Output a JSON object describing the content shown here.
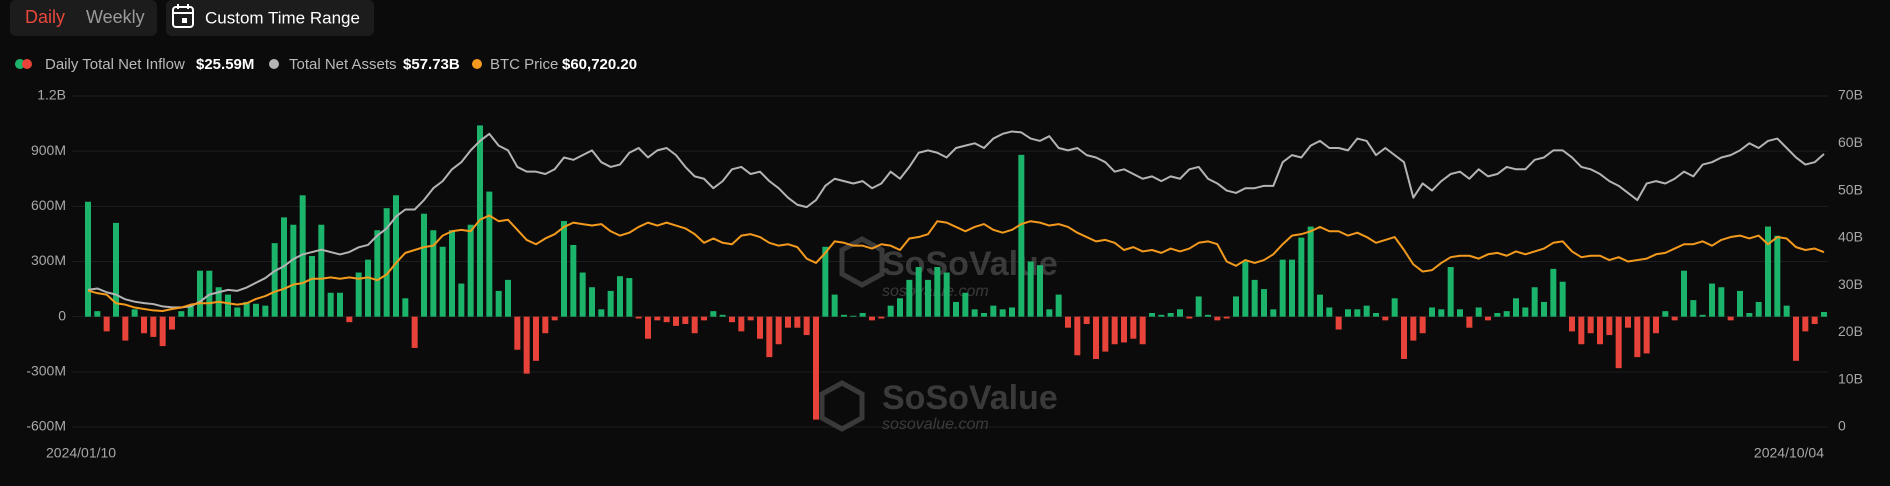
{
  "controls": {
    "tabs": [
      "Daily",
      "Weekly"
    ],
    "custom_range": "Custom Time Range"
  },
  "watermark": {
    "brand": "SoSoValue",
    "site": "sosovalue.com"
  },
  "chart_data": {
    "type": "combo",
    "categories": [
      "2024/01/10",
      null,
      null,
      null,
      null,
      null,
      null,
      null,
      null,
      null,
      null,
      null,
      null,
      null,
      null,
      null,
      null,
      null,
      null,
      null,
      null,
      null,
      null,
      null,
      null,
      null,
      null,
      null,
      null,
      null,
      null,
      null,
      null,
      null,
      null,
      null,
      null,
      null,
      null,
      null,
      null,
      null,
      null,
      null,
      null,
      null,
      null,
      null,
      null,
      null,
      null,
      null,
      null,
      null,
      null,
      null,
      null,
      null,
      null,
      null,
      null,
      null,
      null,
      null,
      null,
      null,
      null,
      null,
      null,
      null,
      null,
      null,
      null,
      null,
      null,
      null,
      null,
      null,
      null,
      null,
      null,
      null,
      null,
      null,
      null,
      null,
      null,
      null,
      null,
      null,
      null,
      null,
      null,
      null,
      null,
      null,
      null,
      null,
      null,
      null,
      null,
      null,
      null,
      null,
      null,
      null,
      null,
      null,
      null,
      null,
      null,
      null,
      null,
      null,
      null,
      null,
      null,
      null,
      null,
      null,
      null,
      null,
      null,
      null,
      null,
      null,
      null,
      null,
      null,
      null,
      null,
      null,
      null,
      null,
      null,
      null,
      null,
      null,
      null,
      null,
      null,
      null,
      null,
      null,
      null,
      null,
      null,
      null,
      null,
      null,
      null,
      null,
      null,
      null,
      null,
      null,
      null,
      null,
      null,
      null,
      null,
      null,
      null,
      null,
      null,
      null,
      null,
      null,
      null,
      null,
      null,
      null,
      null,
      null,
      null,
      null,
      null,
      null,
      null,
      null,
      null,
      null,
      null,
      null,
      null,
      null,
      "2024/10/04"
    ],
    "series": [
      {
        "name": "Daily Total Net Inflow",
        "type": "bar",
        "legend_value": "$25.59M",
        "color": "#1cb36b",
        "negative_color": "#e8433a",
        "values": [
          625000000.0,
          30000000.0,
          -80000000.0,
          510000000.0,
          -130000000.0,
          40000000.0,
          -90000000.0,
          -110000000.0,
          -160000000.0,
          -70000000.0,
          30000000.0,
          60000000.0,
          250000000.0,
          250000000.0,
          160000000.0,
          120000000.0,
          50000000.0,
          80000000.0,
          70000000.0,
          60000000.0,
          400000000.0,
          540000000.0,
          500000000.0,
          660000000.0,
          330000000.0,
          500000000.0,
          130000000.0,
          130000000.0,
          -30000000.0,
          240000000.0,
          310000000.0,
          470000000.0,
          590000000.0,
          660000000.0,
          100000000.0,
          -170000000.0,
          560000000.0,
          470000000.0,
          380000000.0,
          470000000.0,
          180000000.0,
          500000000.0,
          1040000000.0,
          680000000.0,
          140000000.0,
          200000000.0,
          -180000000.0,
          -310000000.0,
          -240000000.0,
          -90000000.0,
          -20000000.0,
          520000000.0,
          390000000.0,
          240000000.0,
          160000000.0,
          40000000.0,
          140000000.0,
          220000000.0,
          210000000.0,
          -10000000.0,
          -120000000.0,
          -20000000.0,
          -30000000.0,
          -50000000.0,
          -40000000.0,
          -90000000.0,
          -20000000.0,
          30000000.0,
          10000000.0,
          -30000000.0,
          -80000000.0,
          -20000000.0,
          -120000000.0,
          -220000000.0,
          -150000000.0,
          -60000000.0,
          -60000000.0,
          -100000000.0,
          -560000000.0,
          380000000.0,
          120000000.0,
          10000000.0,
          5000000.0,
          20000000.0,
          -20000000.0,
          -10000000.0,
          60000000.0,
          100000000.0,
          200000000.0,
          270000000.0,
          200000000.0,
          270000000.0,
          240000000.0,
          80000000.0,
          130000000.0,
          40000000.0,
          20000000.0,
          60000000.0,
          40000000.0,
          50000000.0,
          880000000.0,
          300000000.0,
          280000000.0,
          40000000.0,
          120000000.0,
          -60000000.0,
          -210000000.0,
          -40000000.0,
          -230000000.0,
          -190000000.0,
          -150000000.0,
          -140000000.0,
          -120000000.0,
          -150000000.0,
          20000000.0,
          10000000.0,
          20000000.0,
          40000000.0,
          -10000000.0,
          110000000.0,
          10000000.0,
          -20000000.0,
          -10000000.0,
          110000000.0,
          300000000.0,
          200000000.0,
          150000000.0,
          40000000.0,
          310000000.0,
          310000000.0,
          430000000.0,
          490000000.0,
          120000000.0,
          50000000.0,
          -70000000.0,
          40000000.0,
          40000000.0,
          60000000.0,
          20000000.0,
          -20000000.0,
          100000000.0,
          -230000000.0,
          -130000000.0,
          -90000000.0,
          50000000.0,
          40000000.0,
          270000000.0,
          40000000.0,
          -60000000.0,
          50000000.0,
          -20000000.0,
          20000000.0,
          30000000.0,
          100000000.0,
          50000000.0,
          160000000.0,
          80000000.0,
          260000000.0,
          190000000.0,
          -80000000.0,
          -150000000.0,
          -90000000.0,
          -150000000.0,
          -100000000.0,
          -280000000.0,
          -60000000.0,
          -220000000.0,
          -200000000.0,
          -90000000.0,
          30000000.0,
          -20000000.0,
          250000000.0,
          90000000.0,
          10000000.0,
          180000000.0,
          160000000.0,
          -20000000.0,
          140000000.0,
          20000000.0,
          80000000.0,
          490000000.0,
          440000000.0,
          60000000.0,
          -240000000.0,
          -80000000.0,
          -40000000.0,
          25590000.0
        ]
      },
      {
        "name": "Total Net Assets",
        "type": "line",
        "axis": "y2",
        "legend_value": "$57.73B",
        "color": "#b4b4b4",
        "values": [
          29000000000.0,
          29300000000.0,
          28500000000.0,
          28000000000.0,
          27000000000.0,
          26500000000.0,
          26200000000.0,
          26000000000.0,
          25500000000.0,
          25300000000.0,
          25300000000.0,
          25500000000.0,
          26500000000.0,
          28000000000.0,
          28500000000.0,
          29000000000.0,
          28800000000.0,
          29500000000.0,
          30500000000.0,
          31500000000.0,
          33000000000.0,
          34000000000.0,
          35500000000.0,
          36500000000.0,
          37000000000.0,
          37500000000.0,
          37000000000.0,
          36500000000.0,
          37000000000.0,
          38000000000.0,
          38500000000.0,
          40500000000.0,
          42000000000.0,
          44500000000.0,
          46000000000.0,
          46000000000.0,
          48000000000.0,
          50500000000.0,
          52000000000.0,
          54500000000.0,
          56000000000.0,
          58500000000.0,
          60500000000.0,
          62000000000.0,
          59500000000.0,
          58500000000.0,
          55000000000.0,
          54000000000.0,
          54000000000.0,
          53500000000.0,
          54500000000.0,
          57000000000.0,
          56500000000.0,
          57500000000.0,
          58500000000.0,
          56000000000.0,
          55000000000.0,
          55500000000.0,
          58000000000.0,
          59000000000.0,
          57000000000.0,
          58500000000.0,
          59000000000.0,
          57500000000.0,
          55000000000.0,
          53000000000.0,
          52500000000.0,
          50500000000.0,
          52000000000.0,
          54500000000.0,
          55000000000.0,
          53500000000.0,
          54000000000.0,
          52000000000.0,
          50500000000.0,
          48500000000.0,
          47000000000.0,
          46500000000.0,
          48000000000.0,
          51000000000.0,
          52500000000.0,
          52000000000.0,
          51500000000.0,
          52000000000.0,
          50500000000.0,
          51500000000.0,
          54000000000.0,
          52500000000.0,
          55000000000.0,
          58000000000.0,
          58500000000.0,
          58000000000.0,
          57000000000.0,
          59000000000.0,
          59500000000.0,
          60000000000.0,
          59000000000.0,
          61000000000.0,
          62000000000.0,
          62500000000.0,
          62300000000.0,
          61000000000.0,
          60500000000.0,
          61500000000.0,
          59000000000.0,
          58500000000.0,
          59000000000.0,
          57500000000.0,
          57000000000.0,
          56000000000.0,
          54000000000.0,
          54500000000.0,
          53500000000.0,
          52500000000.0,
          53000000000.0,
          52000000000.0,
          53000000000.0,
          52500000000.0,
          54500000000.0,
          55000000000.0,
          52500000000.0,
          51500000000.0,
          50000000000.0,
          49500000000.0,
          50500000000.0,
          50500000000.0,
          51000000000.0,
          51000000000.0,
          56000000000.0,
          57500000000.0,
          57000000000.0,
          59500000000.0,
          60500000000.0,
          59000000000.0,
          59000000000.0,
          58500000000.0,
          61000000000.0,
          60500000000.0,
          57500000000.0,
          59000000000.0,
          57500000000.0,
          56000000000.0,
          48500000000.0,
          51500000000.0,
          50000000000.0,
          52000000000.0,
          53500000000.0,
          54000000000.0,
          52500000000.0,
          54500000000.0,
          53000000000.0,
          53500000000.0,
          55000000000.0,
          54500000000.0,
          54500000000.0,
          56500000000.0,
          57000000000.0,
          58500000000.0,
          58500000000.0,
          57000000000.0,
          55000000000.0,
          54500000000.0,
          53500000000.0,
          52000000000.0,
          51000000000.0,
          49500000000.0,
          48000000000.0,
          51500000000.0,
          52000000000.0,
          51500000000.0,
          52500000000.0,
          54000000000.0,
          53000000000.0,
          55500000000.0,
          56000000000.0,
          57000000000.0,
          57500000000.0,
          58500000000.0,
          60000000000.0,
          59000000000.0,
          60500000000.0,
          61000000000.0,
          59000000000.0,
          57000000000.0,
          55500000000.0,
          56000000000.0,
          57730000000.0
        ]
      },
      {
        "name": "BTC Price",
        "type": "line",
        "axis": "y3",
        "legend_value": "$60,720.20",
        "color": "#f39a1e",
        "values": [
          47400,
          46500,
          46000,
          43000,
          42500,
          41500,
          41000,
          40500,
          40300,
          41000,
          41500,
          42500,
          43000,
          43000,
          43500,
          43000,
          42500,
          43000,
          44500,
          45500,
          47000,
          48000,
          49500,
          50000,
          51500,
          51500,
          52000,
          51500,
          52000,
          51500,
          52000,
          51000,
          53000,
          57000,
          60500,
          61500,
          62500,
          63000,
          66500,
          68000,
          68500,
          68000,
          72000,
          73500,
          71500,
          72000,
          68500,
          65000,
          63500,
          65500,
          67000,
          69500,
          71000,
          70500,
          70000,
          70500,
          68000,
          66500,
          67500,
          69500,
          71000,
          70000,
          71000,
          70000,
          69000,
          67000,
          64000,
          65500,
          64000,
          63500,
          66500,
          67000,
          66000,
          64000,
          63000,
          63500,
          62500,
          58500,
          57000,
          60500,
          64500,
          64000,
          63000,
          63000,
          62000,
          63500,
          63000,
          61500,
          65500,
          66000,
          67000,
          71500,
          71000,
          69500,
          68000,
          69500,
          70500,
          68500,
          67500,
          68500,
          70500,
          71500,
          71000,
          70000,
          70500,
          69500,
          67500,
          66000,
          64500,
          65000,
          64000,
          61500,
          62500,
          61000,
          61500,
          60500,
          62000,
          61000,
          62000,
          64000,
          64500,
          63500,
          57500,
          56000,
          58000,
          57000,
          58000,
          60000,
          63500,
          66500,
          67000,
          68000,
          69500,
          68000,
          68000,
          66500,
          67500,
          66000,
          64000,
          65000,
          66000,
          61500,
          56500,
          54000,
          54500,
          57000,
          59000,
          59500,
          59500,
          58500,
          60000,
          60500,
          59500,
          61000,
          60000,
          61000,
          62000,
          64000,
          64500,
          61000,
          59000,
          59500,
          59500,
          58000,
          59000,
          57500,
          58000,
          58500,
          60000,
          60500,
          62000,
          63500,
          63500,
          64500,
          63000,
          65000,
          66000,
          66500,
          65500,
          66500,
          63500,
          66000,
          65500,
          62500,
          61500,
          62000,
          60720.2
        ]
      }
    ],
    "ylim": [
      -600000000.0,
      1200000000.0
    ],
    "yticks": [
      {
        "value": -600000000.0,
        "label": "-600M"
      },
      {
        "value": -300000000.0,
        "label": "-300M"
      },
      0,
      {
        "value": 300000000.0,
        "label": "300M"
      },
      {
        "value": 600000000.0,
        "label": "600M"
      },
      {
        "value": 900000000.0,
        "label": "900M"
      },
      {
        "value": 1200000000.0,
        "label": "1.2B"
      }
    ],
    "y2lim": [
      0,
      70000000000.0
    ],
    "y2ticks": [
      0,
      {
        "value": 10000000000.0,
        "label": "10B"
      },
      {
        "value": 20000000000.0,
        "label": "20B"
      },
      {
        "value": 30000000000.0,
        "label": "30B"
      },
      {
        "value": 40000000000.0,
        "label": "40B"
      },
      {
        "value": 50000000000.0,
        "label": "50B"
      },
      {
        "value": 60000000000.0,
        "label": "60B"
      },
      {
        "value": 70000000000.0,
        "label": "70B"
      }
    ],
    "y3lim": [
      0,
      115000
    ],
    "grid": true
  }
}
